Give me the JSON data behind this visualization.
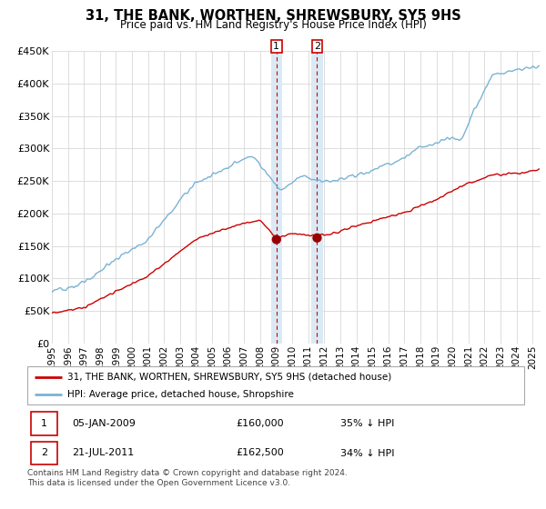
{
  "title": "31, THE BANK, WORTHEN, SHREWSBURY, SY5 9HS",
  "subtitle": "Price paid vs. HM Land Registry's House Price Index (HPI)",
  "legend_line1": "31, THE BANK, WORTHEN, SHREWSBURY, SY5 9HS (detached house)",
  "legend_line2": "HPI: Average price, detached house, Shropshire",
  "footer": "Contains HM Land Registry data © Crown copyright and database right 2024.\nThis data is licensed under the Open Government Licence v3.0.",
  "transactions": [
    {
      "label": "1",
      "date": "05-JAN-2009",
      "price": "£160,000",
      "hpi": "35% ↓ HPI"
    },
    {
      "label": "2",
      "date": "21-JUL-2011",
      "price": "£162,500",
      "hpi": "34% ↓ HPI"
    }
  ],
  "transaction_dates": [
    2009.017,
    2011.554
  ],
  "transaction_prices": [
    160000,
    162500
  ],
  "hpi_color": "#7ab3d4",
  "price_color": "#cc0000",
  "shade_color": "#daeaf5",
  "marker_color": "#990000",
  "ylim": [
    0,
    450000
  ],
  "xlim": [
    1995,
    2025.5
  ],
  "yticks": [
    0,
    50000,
    100000,
    150000,
    200000,
    250000,
    300000,
    350000,
    400000,
    450000
  ],
  "ytick_labels": [
    "£0",
    "£50K",
    "£100K",
    "£150K",
    "£200K",
    "£250K",
    "£300K",
    "£350K",
    "£400K",
    "£450K"
  ],
  "xticks": [
    1995,
    1996,
    1997,
    1998,
    1999,
    2000,
    2001,
    2002,
    2003,
    2004,
    2005,
    2006,
    2007,
    2008,
    2009,
    2010,
    2011,
    2012,
    2013,
    2014,
    2015,
    2016,
    2017,
    2018,
    2019,
    2020,
    2021,
    2022,
    2023,
    2024,
    2025
  ]
}
